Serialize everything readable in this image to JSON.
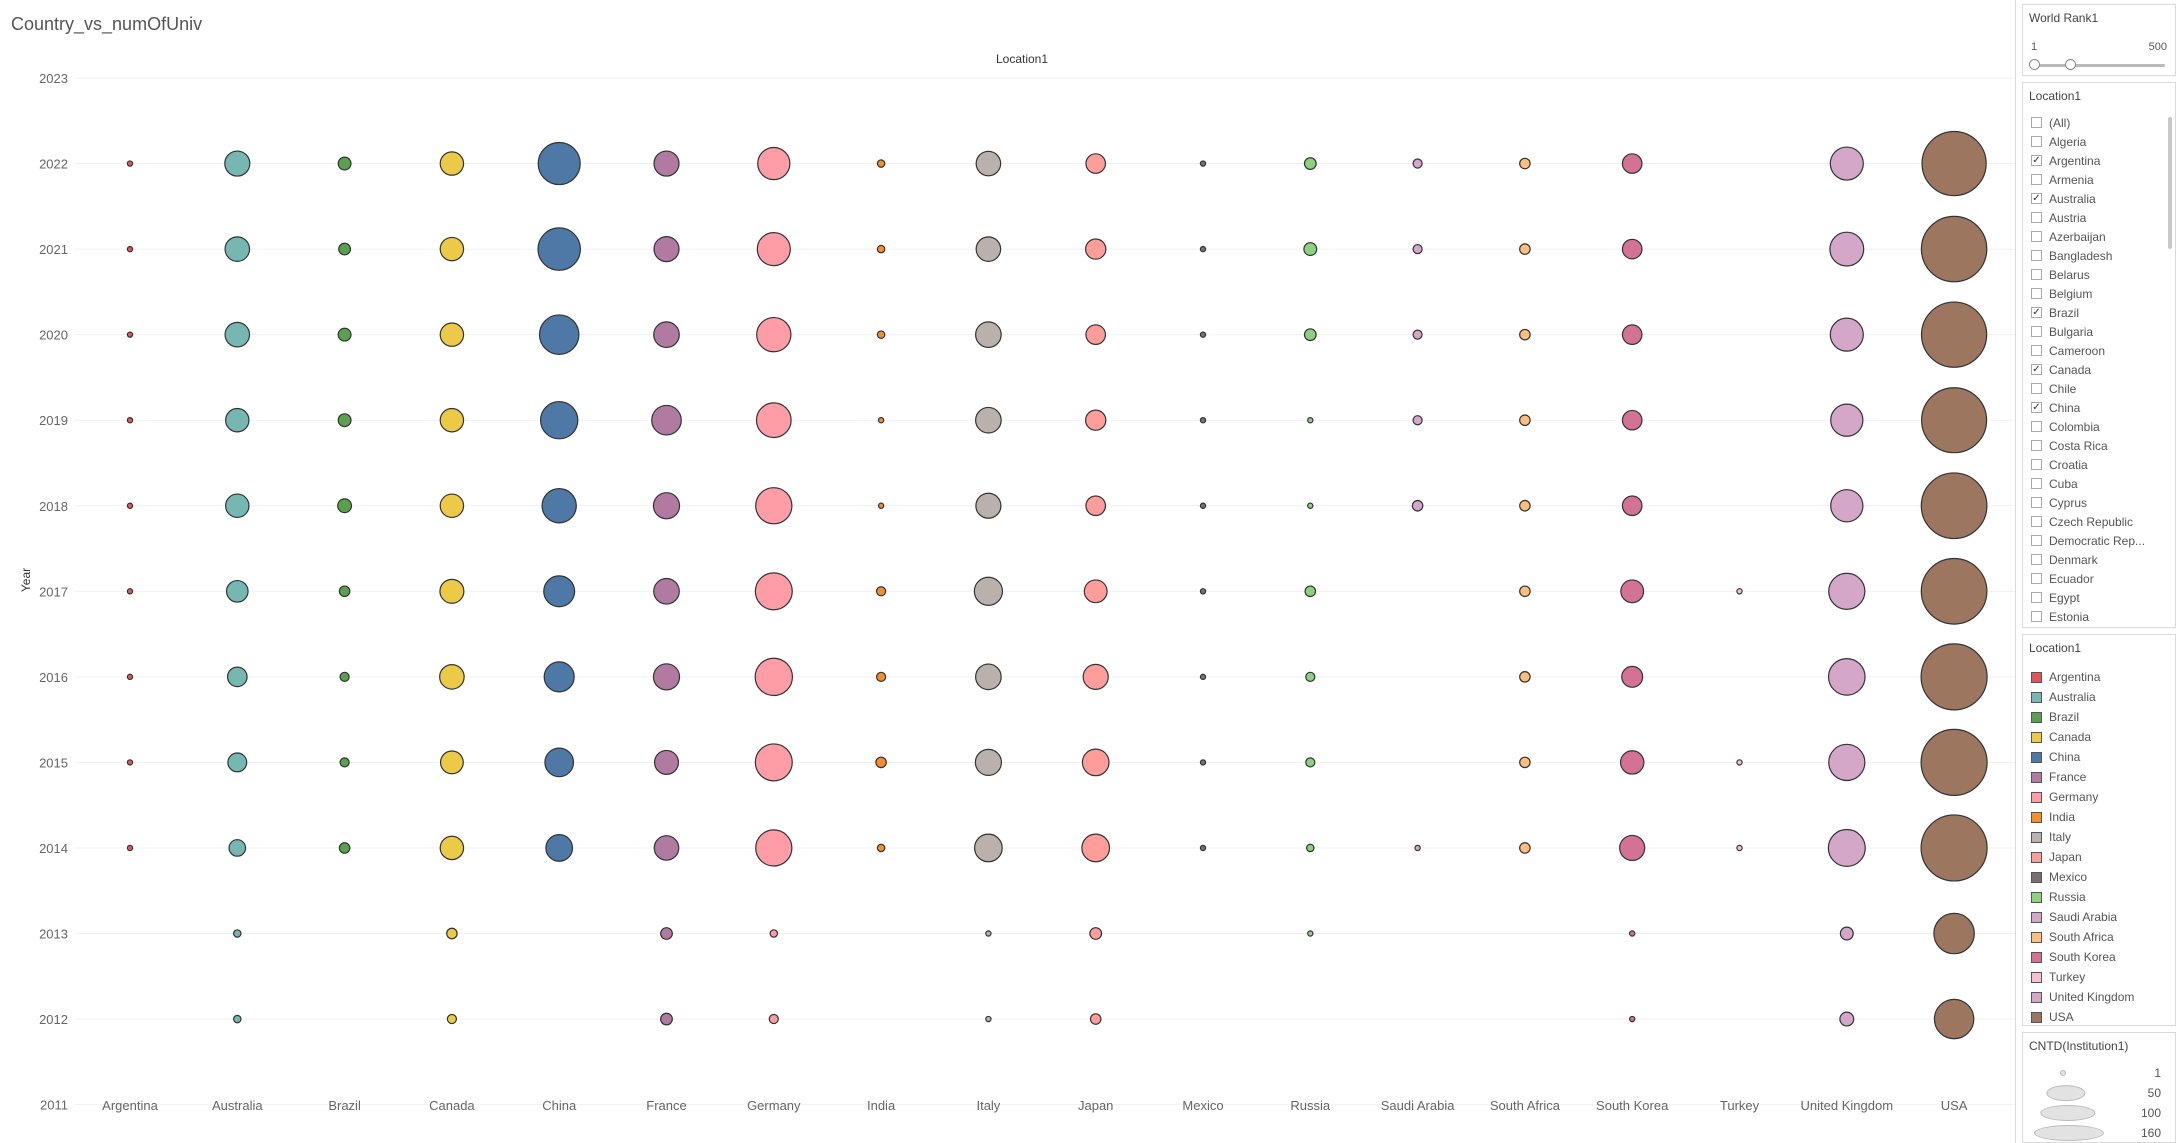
{
  "chart_data": {
    "type": "scatter",
    "title": "Country_vs_numOfUniv",
    "x_header": "Location1",
    "ylabel": "Year",
    "categories": [
      "Argentina",
      "Australia",
      "Brazil",
      "Canada",
      "China",
      "France",
      "Germany",
      "India",
      "Italy",
      "Japan",
      "Mexico",
      "Russia",
      "Saudi Arabia",
      "South Africa",
      "South Korea",
      "Turkey",
      "United Kingdom",
      "USA"
    ],
    "years": [
      2023,
      2022,
      2021,
      2020,
      2019,
      2018,
      2017,
      2016,
      2015,
      2014,
      2013,
      2012,
      2011
    ],
    "grid": true,
    "size_measure": "CNTD(Institution1)",
    "colors": {
      "Argentina": "#e15759",
      "Australia": "#76b7b2",
      "Brazil": "#59a14f",
      "Canada": "#edc948",
      "China": "#4e79a7",
      "France": "#b07aa1",
      "Germany": "#ff9da7",
      "India": "#f28e2b",
      "Italy": "#bab0ac",
      "Japan": "#ff9d9a",
      "Mexico": "#79706e",
      "Russia": "#8cd17d",
      "Saudi Arabia": "#d4a6c8",
      "South Africa": "#ffbe7d",
      "South Korea": "#d37295",
      "Turkey": "#fabfd2",
      "United Kingdom": "#d4a6c8",
      "USA": "#9d7660"
    },
    "series": [
      {
        "name": "Argentina",
        "values": {
          "2022": 1,
          "2021": 1,
          "2020": 1,
          "2019": 1,
          "2018": 1,
          "2017": 1,
          "2016": 1,
          "2015": 1,
          "2014": 1
        }
      },
      {
        "name": "Australia",
        "values": {
          "2022": 23,
          "2021": 22,
          "2020": 22,
          "2019": 20,
          "2018": 20,
          "2017": 17,
          "2016": 14,
          "2015": 13,
          "2014": 10,
          "2013": 2,
          "2012": 2
        }
      },
      {
        "name": "Brazil",
        "values": {
          "2022": 6,
          "2021": 5,
          "2020": 6,
          "2019": 6,
          "2018": 7,
          "2017": 4,
          "2016": 3,
          "2015": 3,
          "2014": 4
        }
      },
      {
        "name": "Canada",
        "values": {
          "2022": 20,
          "2021": 20,
          "2020": 20,
          "2019": 20,
          "2018": 20,
          "2017": 21,
          "2016": 22,
          "2015": 19,
          "2014": 20,
          "2013": 4,
          "2012": 3
        }
      },
      {
        "name": "China",
        "values": {
          "2022": 65,
          "2021": 66,
          "2020": 57,
          "2019": 51,
          "2018": 43,
          "2017": 35,
          "2016": 33,
          "2015": 30,
          "2014": 26
        }
      },
      {
        "name": "France",
        "values": {
          "2022": 23,
          "2021": 23,
          "2020": 24,
          "2019": 32,
          "2018": 25,
          "2017": 24,
          "2016": 25,
          "2015": 21,
          "2014": 22,
          "2013": 5,
          "2012": 5
        }
      },
      {
        "name": "Germany",
        "values": {
          "2022": 38,
          "2021": 40,
          "2020": 43,
          "2019": 44,
          "2018": 48,
          "2017": 50,
          "2016": 51,
          "2015": 50,
          "2014": 48,
          "2013": 2,
          "2012": 3
        }
      },
      {
        "name": "India",
        "values": {
          "2022": 2,
          "2021": 2,
          "2020": 2,
          "2019": 1,
          "2018": 1,
          "2017": 3,
          "2016": 3,
          "2015": 4,
          "2014": 2
        }
      },
      {
        "name": "Italy",
        "values": {
          "2022": 22,
          "2021": 22,
          "2020": 24,
          "2019": 24,
          "2018": 23,
          "2017": 29,
          "2016": 24,
          "2015": 25,
          "2014": 28,
          "2013": 1,
          "2012": 1
        }
      },
      {
        "name": "Japan",
        "values": {
          "2022": 14,
          "2021": 15,
          "2020": 14,
          "2019": 15,
          "2018": 14,
          "2017": 19,
          "2016": 23,
          "2015": 26,
          "2014": 28,
          "2013": 5,
          "2012": 4
        }
      },
      {
        "name": "Mexico",
        "values": {
          "2022": 1,
          "2021": 1,
          "2020": 1,
          "2019": 1,
          "2018": 1,
          "2017": 1,
          "2016": 1,
          "2015": 1,
          "2014": 1
        }
      },
      {
        "name": "Russia",
        "values": {
          "2022": 5,
          "2021": 6,
          "2020": 5,
          "2019": 1,
          "2018": 1,
          "2017": 4,
          "2016": 3,
          "2015": 3,
          "2014": 2,
          "2013": 1
        }
      },
      {
        "name": "Saudi Arabia",
        "values": {
          "2022": 3,
          "2021": 3,
          "2020": 3,
          "2019": 3,
          "2018": 4,
          "2014": 1
        }
      },
      {
        "name": "South Africa",
        "values": {
          "2022": 4,
          "2021": 4,
          "2020": 4,
          "2019": 4,
          "2018": 4,
          "2017": 4,
          "2016": 4,
          "2015": 4,
          "2014": 4
        }
      },
      {
        "name": "South Korea",
        "values": {
          "2022": 14,
          "2021": 14,
          "2020": 14,
          "2019": 14,
          "2018": 14,
          "2017": 19,
          "2016": 16,
          "2015": 20,
          "2014": 23,
          "2013": 1,
          "2012": 1
        }
      },
      {
        "name": "Turkey",
        "values": {
          "2017": 1,
          "2015": 1,
          "2014": 1
        }
      },
      {
        "name": "United Kingdom",
        "values": {
          "2022": 40,
          "2021": 42,
          "2020": 40,
          "2019": 38,
          "2018": 38,
          "2017": 48,
          "2016": 49,
          "2015": 48,
          "2014": 50,
          "2013": 6,
          "2012": 7
        }
      },
      {
        "name": "USA",
        "values": {
          "2022": 151,
          "2021": 157,
          "2020": 156,
          "2019": 155,
          "2018": 158,
          "2017": 158,
          "2016": 160,
          "2015": 160,
          "2014": 160,
          "2013": 60,
          "2012": 57
        }
      }
    ]
  },
  "filters": {
    "world_rank": {
      "title": "World Rank1",
      "min": "1",
      "max": "500",
      "selected_min": 1,
      "selected_max": 500
    },
    "location": {
      "title": "Location1",
      "items": [
        {
          "label": "(All)",
          "checked": false
        },
        {
          "label": "Algeria",
          "checked": false
        },
        {
          "label": "Argentina",
          "checked": true
        },
        {
          "label": "Armenia",
          "checked": false
        },
        {
          "label": "Australia",
          "checked": true
        },
        {
          "label": "Austria",
          "checked": false
        },
        {
          "label": "Azerbaijan",
          "checked": false
        },
        {
          "label": "Bangladesh",
          "checked": false
        },
        {
          "label": "Belarus",
          "checked": false
        },
        {
          "label": "Belgium",
          "checked": false
        },
        {
          "label": "Brazil",
          "checked": true
        },
        {
          "label": "Bulgaria",
          "checked": false
        },
        {
          "label": "Cameroon",
          "checked": false
        },
        {
          "label": "Canada",
          "checked": true
        },
        {
          "label": "Chile",
          "checked": false
        },
        {
          "label": "China",
          "checked": true
        },
        {
          "label": "Colombia",
          "checked": false
        },
        {
          "label": "Costa Rica",
          "checked": false
        },
        {
          "label": "Croatia",
          "checked": false
        },
        {
          "label": "Cuba",
          "checked": false
        },
        {
          "label": "Cyprus",
          "checked": false
        },
        {
          "label": "Czech Republic",
          "checked": false
        },
        {
          "label": "Democratic Rep...",
          "checked": false
        },
        {
          "label": "Denmark",
          "checked": false
        },
        {
          "label": "Ecuador",
          "checked": false
        },
        {
          "label": "Egypt",
          "checked": false
        },
        {
          "label": "Estonia",
          "checked": false
        }
      ]
    }
  },
  "legend": {
    "title": "Location1",
    "items": [
      "Argentina",
      "Australia",
      "Brazil",
      "Canada",
      "China",
      "France",
      "Germany",
      "India",
      "Italy",
      "Japan",
      "Mexico",
      "Russia",
      "Saudi Arabia",
      "South Africa",
      "South Korea",
      "Turkey",
      "United Kingdom",
      "USA"
    ]
  },
  "size_legend": {
    "title": "CNTD(Institution1)",
    "items": [
      {
        "label": "1",
        "value": 1
      },
      {
        "label": "50",
        "value": 50
      },
      {
        "label": "100",
        "value": 100
      },
      {
        "label": "160",
        "value": 160
      }
    ]
  }
}
